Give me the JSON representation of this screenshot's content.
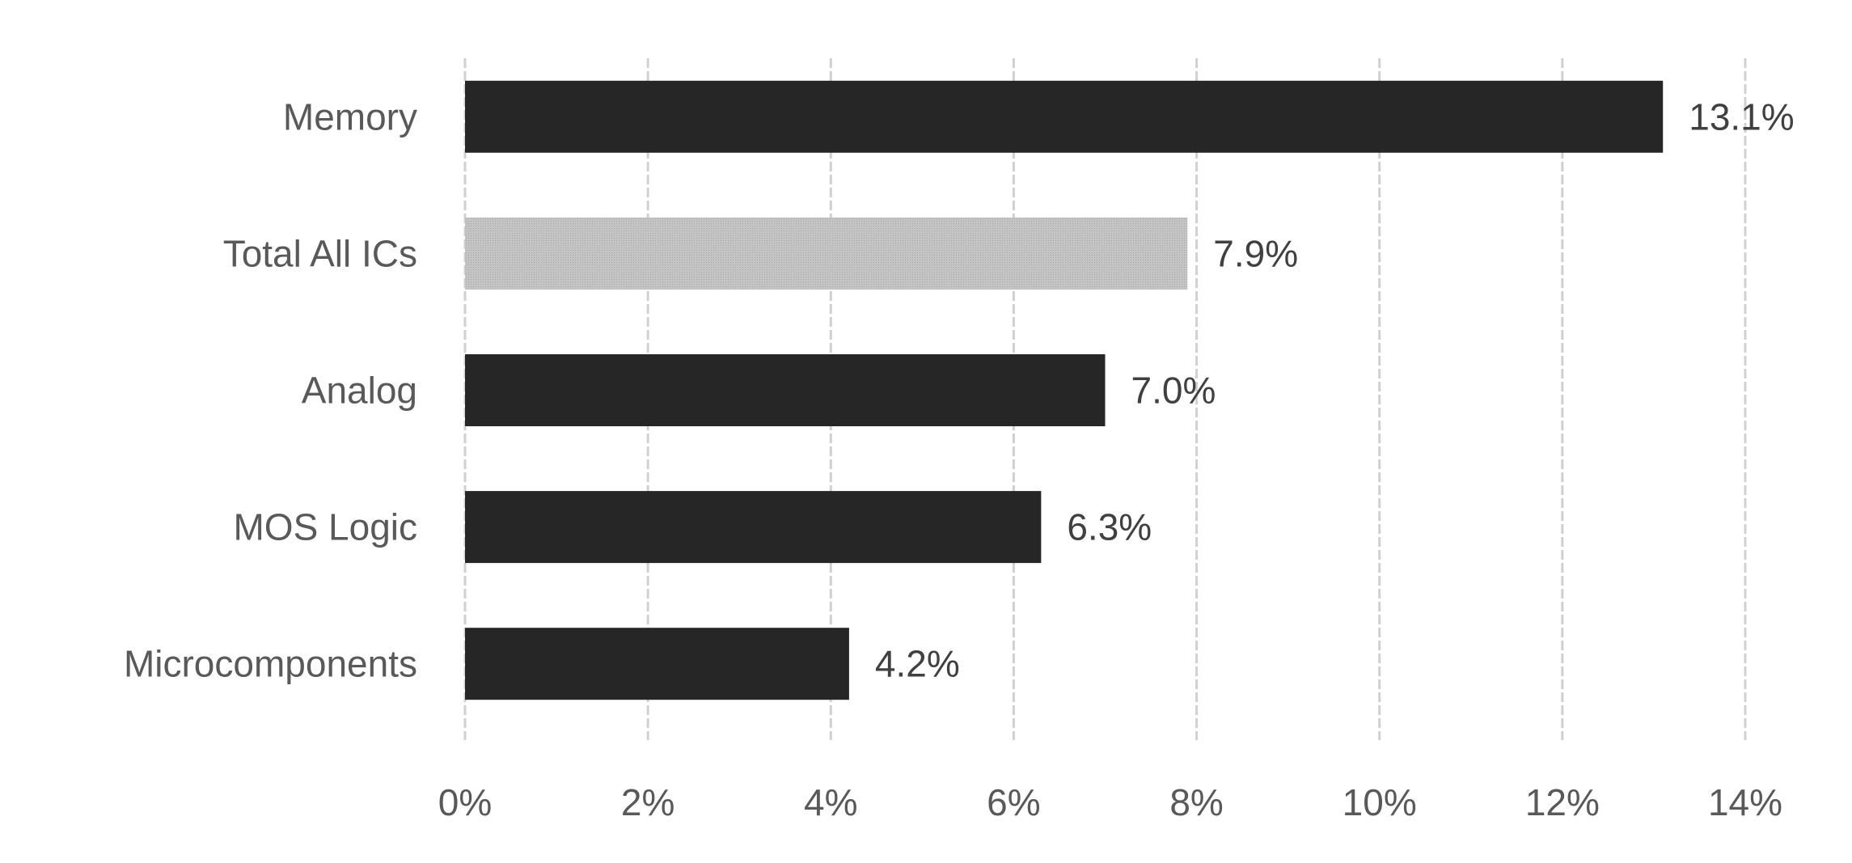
{
  "chart_data": {
    "type": "bar",
    "orientation": "horizontal",
    "categories": [
      "Memory",
      "Total All ICs",
      "Analog",
      "MOS Logic",
      "Microcomponents"
    ],
    "values": [
      13.1,
      7.9,
      7.0,
      6.3,
      4.2
    ],
    "data_labels": [
      "13.1%",
      "7.9%",
      "7.0%",
      "6.3%",
      "4.2%"
    ],
    "bar_colors": [
      "#262626",
      "#bfbfbf",
      "#262626",
      "#262626",
      "#262626"
    ],
    "xlim": [
      0,
      14
    ],
    "x_ticks": [
      0,
      2,
      4,
      6,
      8,
      10,
      12,
      14
    ],
    "x_tick_labels": [
      "0%",
      "2%",
      "4%",
      "6%",
      "8%",
      "10%",
      "12%",
      "14%"
    ],
    "title": "",
    "xlabel": "",
    "ylabel": "",
    "grid": "vertical dashed",
    "legend": "none"
  }
}
